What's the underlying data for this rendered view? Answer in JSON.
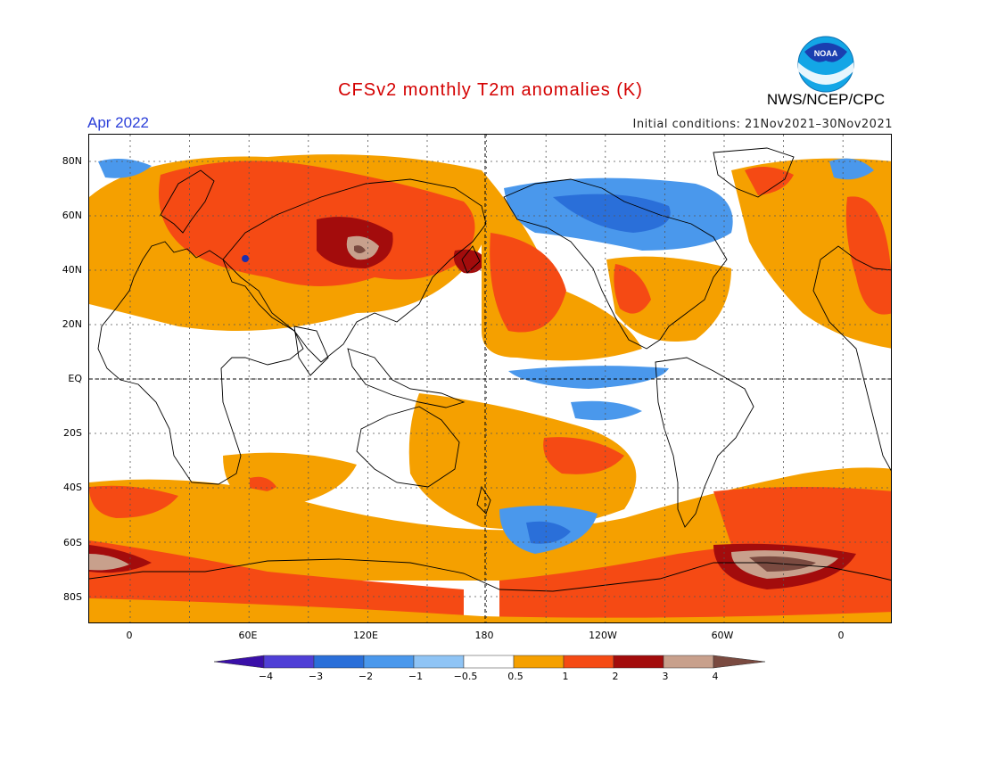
{
  "title": "CFSv2 monthly T2m anomalies (K)",
  "valid_month": "Apr 2022",
  "initial_conditions": "Initial conditions: 21Nov2021–30Nov2021",
  "agency": "NWS/NCEP/CPC",
  "logo_text": "NOAA",
  "lat_labels": [
    "80N",
    "60N",
    "40N",
    "20N",
    "EQ",
    "20S",
    "40S",
    "60S",
    "80S"
  ],
  "lon_labels": [
    "0",
    "60E",
    "120E",
    "180",
    "120W",
    "60W",
    "0"
  ],
  "legend": {
    "labels": [
      "−4",
      "−3",
      "−2",
      "−1",
      "−0.5",
      "0.5",
      "1",
      "2",
      "3",
      "4"
    ],
    "colors": [
      "#3a0fa8",
      "#4f3fd6",
      "#2a6fd9",
      "#4a98ec",
      "#8fc4f5",
      "#ffffff",
      "#f5a000",
      "#f54a14",
      "#a30c0c",
      "#c8a08c",
      "#7a4a40"
    ]
  },
  "palette": {
    "orange": "#f5a000",
    "red": "#f54a14",
    "darkred": "#a30c0c",
    "tan": "#c8a08c",
    "brown": "#7a4a40",
    "blue": "#4a98ec",
    "midblue": "#2a6fd9",
    "lightblue": "#8fc4f5",
    "navy": "#1a2fb0"
  }
}
